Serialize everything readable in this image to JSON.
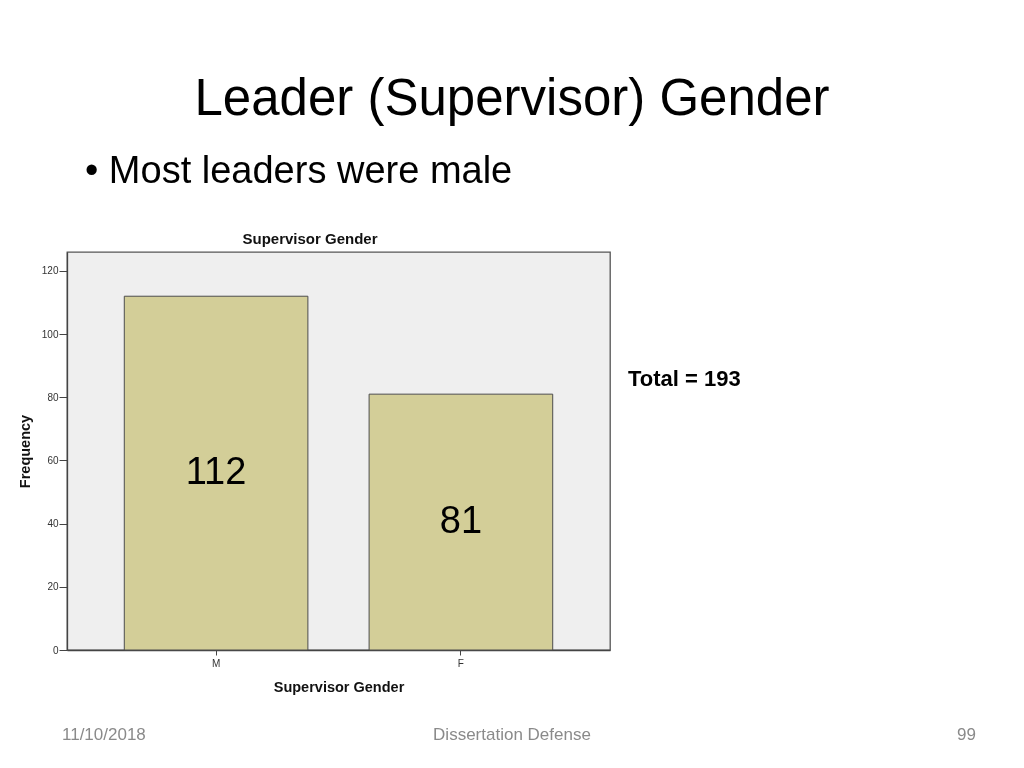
{
  "chart_data": {
    "type": "bar",
    "title": "Leader (Supervisor) Gender",
    "subtitle": "• Most leaders were male",
    "xlabel": "Supervisor Gender",
    "ylabel": "Frequency",
    "categories": [
      "M",
      "F"
    ],
    "values": [
      112,
      81
    ],
    "color": "#d3ce98",
    "ylim": [
      0,
      126
    ],
    "yticks": [
      0,
      20,
      40,
      60,
      80,
      100,
      120
    ],
    "data_labels": true,
    "annotations": [
      "Supervisor Gender",
      "Total = 193",
      "11/10/2018",
      "Dissertation Defense",
      "99"
    ]
  }
}
